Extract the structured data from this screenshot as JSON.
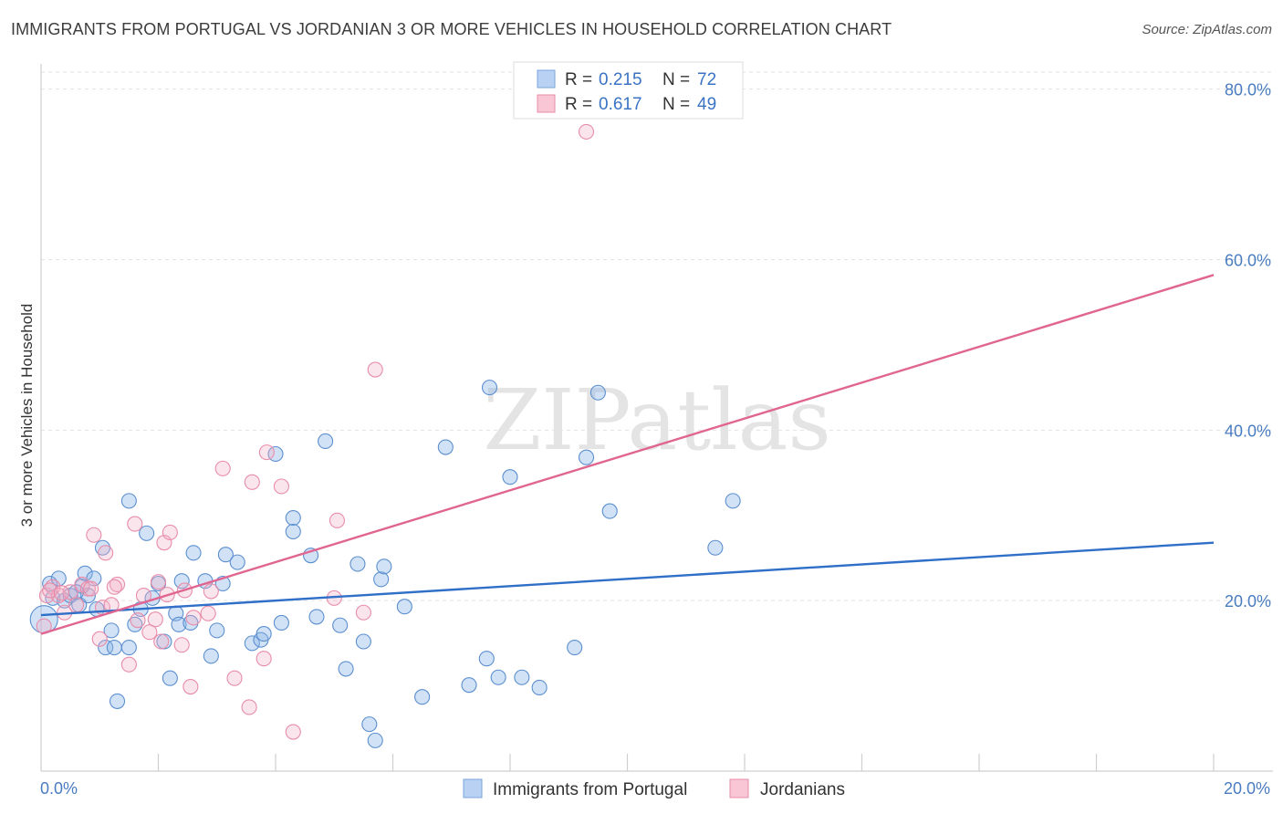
{
  "chart_data": {
    "type": "scatter",
    "title": "IMMIGRANTS FROM PORTUGAL VS JORDANIAN 3 OR MORE VEHICLES IN HOUSEHOLD CORRELATION CHART",
    "source": "Source: ZipAtlas.com",
    "xlabel": "",
    "ylabel": "3 or more Vehicles in Household",
    "xlim": [
      0,
      20
    ],
    "ylim": [
      0,
      82
    ],
    "x_tick_labels": [
      "0.0%",
      "20.0%"
    ],
    "y_ticks": [
      20,
      40,
      60,
      80
    ],
    "y_tick_labels": [
      "20.0%",
      "40.0%",
      "60.0%",
      "80.0%"
    ],
    "watermark": "ZIPatlas",
    "legend": [
      {
        "r_label": "R =",
        "r_value": "0.215",
        "n_label": "N =",
        "n_value": "72"
      },
      {
        "r_label": "R =",
        "r_value": "0.617",
        "n_label": "N =",
        "n_value": "49"
      }
    ],
    "series": [
      {
        "name": "Immigrants from Portugal",
        "color": "#8ab4e8",
        "stroke": "#5b8fd0",
        "line_color": "#2f6fc8",
        "trend": [
          [
            0,
            18.3
          ],
          [
            20,
            26.8
          ]
        ],
        "points": [
          [
            0.05,
            17.8
          ],
          [
            0.15,
            22
          ],
          [
            0.2,
            20.3
          ],
          [
            0.3,
            22.6
          ],
          [
            0.4,
            20
          ],
          [
            0.5,
            20.6
          ],
          [
            0.65,
            19.5
          ],
          [
            0.7,
            21.7
          ],
          [
            0.75,
            23.2
          ],
          [
            0.8,
            20.6
          ],
          [
            0.9,
            22.6
          ],
          [
            0.95,
            19
          ],
          [
            1.05,
            26.2
          ],
          [
            1.1,
            14.5
          ],
          [
            1.2,
            16.5
          ],
          [
            1.25,
            14.5
          ],
          [
            1.3,
            8.2
          ],
          [
            1.5,
            14.5
          ],
          [
            1.5,
            31.7
          ],
          [
            1.6,
            17.2
          ],
          [
            1.7,
            19
          ],
          [
            1.8,
            27.9
          ],
          [
            1.9,
            20.3
          ],
          [
            2.0,
            22
          ],
          [
            2.1,
            15.2
          ],
          [
            2.2,
            10.9
          ],
          [
            2.3,
            18.5
          ],
          [
            2.35,
            17.2
          ],
          [
            2.4,
            22.3
          ],
          [
            2.55,
            17.4
          ],
          [
            2.6,
            25.6
          ],
          [
            2.8,
            22.3
          ],
          [
            2.9,
            13.5
          ],
          [
            3.0,
            16.5
          ],
          [
            3.1,
            22
          ],
          [
            3.15,
            25.4
          ],
          [
            3.35,
            24.5
          ],
          [
            3.6,
            15
          ],
          [
            3.75,
            15.4
          ],
          [
            3.8,
            16.1
          ],
          [
            4.0,
            37.2
          ],
          [
            4.1,
            17.4
          ],
          [
            4.3,
            29.7
          ],
          [
            4.3,
            28.1
          ],
          [
            4.6,
            25.3
          ],
          [
            4.7,
            18.1
          ],
          [
            4.85,
            38.7
          ],
          [
            5.1,
            17.1
          ],
          [
            5.2,
            12
          ],
          [
            5.4,
            24.3
          ],
          [
            5.5,
            15.2
          ],
          [
            5.6,
            5.5
          ],
          [
            5.7,
            3.6
          ],
          [
            5.8,
            22.5
          ],
          [
            5.85,
            24
          ],
          [
            6.2,
            19.3
          ],
          [
            6.5,
            8.7
          ],
          [
            6.9,
            38
          ],
          [
            7.3,
            10.1
          ],
          [
            7.6,
            13.2
          ],
          [
            7.65,
            45
          ],
          [
            7.8,
            11
          ],
          [
            8.0,
            34.5
          ],
          [
            8.2,
            11
          ],
          [
            8.5,
            9.8
          ],
          [
            9.1,
            14.5
          ],
          [
            9.3,
            36.8
          ],
          [
            9.5,
            44.4
          ],
          [
            9.7,
            30.5
          ],
          [
            11.5,
            26.2
          ],
          [
            11.8,
            31.7
          ],
          [
            0.6,
            21
          ]
        ]
      },
      {
        "name": "Jordanians",
        "color": "#f3b0c6",
        "stroke": "#e88ca9",
        "line_color": "#e06691",
        "trend": [
          [
            0,
            16.1
          ],
          [
            20,
            58.2
          ]
        ],
        "points": [
          [
            0.05,
            17
          ],
          [
            0.1,
            20.6
          ],
          [
            0.2,
            21.6
          ],
          [
            0.3,
            20.6
          ],
          [
            0.4,
            18.6
          ],
          [
            0.5,
            21
          ],
          [
            0.6,
            19.5
          ],
          [
            0.7,
            21.9
          ],
          [
            0.8,
            21.4
          ],
          [
            0.9,
            27.7
          ],
          [
            1.0,
            15.5
          ],
          [
            1.05,
            19.2
          ],
          [
            1.1,
            25.6
          ],
          [
            1.2,
            19.5
          ],
          [
            1.3,
            21.9
          ],
          [
            1.5,
            12.5
          ],
          [
            1.6,
            29
          ],
          [
            1.65,
            17.7
          ],
          [
            1.75,
            20.6
          ],
          [
            1.85,
            16.3
          ],
          [
            2.0,
            22.2
          ],
          [
            2.1,
            26.8
          ],
          [
            2.15,
            20.7
          ],
          [
            2.2,
            28
          ],
          [
            2.4,
            14.8
          ],
          [
            2.45,
            21.2
          ],
          [
            2.55,
            9.9
          ],
          [
            2.6,
            18
          ],
          [
            2.85,
            18.5
          ],
          [
            2.9,
            21.1
          ],
          [
            3.1,
            35.5
          ],
          [
            3.3,
            10.9
          ],
          [
            3.55,
            7.5
          ],
          [
            3.6,
            33.9
          ],
          [
            3.8,
            13.2
          ],
          [
            3.85,
            37.4
          ],
          [
            4.1,
            33.4
          ],
          [
            4.3,
            4.6
          ],
          [
            5.0,
            20.3
          ],
          [
            5.05,
            29.4
          ],
          [
            5.5,
            18.6
          ],
          [
            5.7,
            47.1
          ],
          [
            9.3,
            75
          ],
          [
            0.15,
            21.2
          ],
          [
            0.35,
            20.9
          ],
          [
            0.85,
            21.4
          ],
          [
            1.25,
            21.6
          ],
          [
            1.95,
            17.8
          ],
          [
            2.05,
            15.2
          ]
        ]
      }
    ]
  }
}
